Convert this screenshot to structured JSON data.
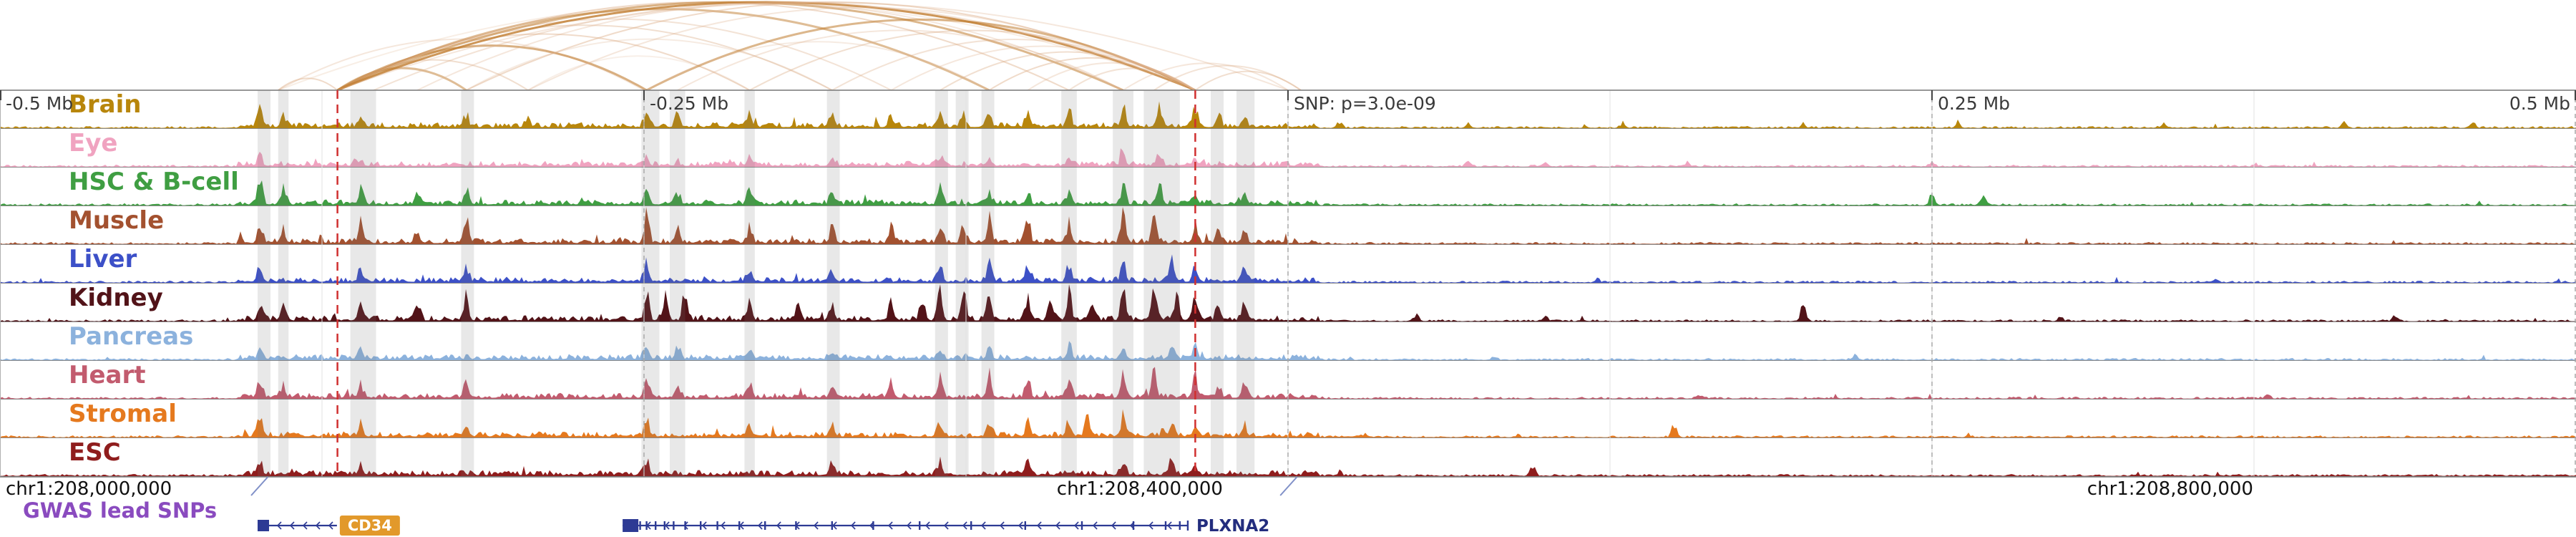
{
  "ruler": {
    "ticks": [
      {
        "label": "-0.5 Mb",
        "x": 0.0
      },
      {
        "label": "-0.25 Mb",
        "x": 0.25
      },
      {
        "label": "0.25 Mb",
        "x": 0.75
      },
      {
        "label": "0.5 Mb",
        "x": 1.0
      }
    ],
    "snp": {
      "label": "SNP: p=3.0e-09",
      "x": 0.5
    }
  },
  "genome_axis": {
    "coords": [
      {
        "label": "chr1:208,000,000",
        "x": 0.0
      },
      {
        "label": "chr1:208,400,000",
        "x": 0.408
      },
      {
        "label": "chr1:208,800,000",
        "x": 0.808
      }
    ]
  },
  "gwas_track": {
    "label": "GWAS lead SNPs",
    "color": "#8a4bbf"
  },
  "genes": [
    {
      "name": "CD34",
      "start": 0.1,
      "end": 0.1308,
      "label_style": "orange-box",
      "label_bg": "#e2992b",
      "label_text_color": "#ffffff"
    },
    {
      "name": "PLXNA2",
      "start": 0.2417,
      "end": 0.4611,
      "label_style": "text",
      "label_color": "#232d7e",
      "exons": [
        0.246,
        0.2485,
        0.251,
        0.2545,
        0.258,
        0.2615,
        0.266,
        0.272,
        0.2785,
        0.287,
        0.297,
        0.309,
        0.323,
        0.339,
        0.357,
        0.377,
        0.398,
        0.42,
        0.44,
        0.4525,
        0.458
      ]
    }
  ],
  "colors": {
    "arc": "#c07c2e",
    "arc_light": "#ddb08a",
    "highlight": "rgba(120,120,120,0.17)",
    "snp_line": "#d03030",
    "grid": "#e2e2e2",
    "grid_major": "#a8a8a8",
    "baseline": "#8a8a8a",
    "border": "#777777",
    "gene": "#2d3a94",
    "ruler_text": "#3a3a3a",
    "coord_text": "#111111",
    "connector": "#8090c8",
    "tick": "#444444"
  },
  "chart_data": {
    "type": "area",
    "title": "",
    "x_axis": {
      "relative_ticks": [
        "-0.5 Mb",
        "-0.25 Mb",
        "0.25 Mb",
        "0.5 Mb"
      ],
      "relative_tick_positions": [
        0.0,
        0.25,
        0.75,
        1.0
      ],
      "snp_annotation": "SNP: p=3.0e-09",
      "snp_position": 0.5,
      "genome_labels": [
        "chr1:208,000,000",
        "chr1:208,400,000",
        "chr1:208,800,000"
      ],
      "genome_label_positions": [
        0.0,
        0.408,
        0.808
      ],
      "range_mb": [
        -0.5,
        0.5
      ]
    },
    "snp_lines_x": [
      0.131,
      0.464
    ],
    "highlights": [
      [
        0.1,
        0.105
      ],
      [
        0.108,
        0.112
      ],
      [
        0.136,
        0.146
      ],
      [
        0.179,
        0.184
      ],
      [
        0.249,
        0.256
      ],
      [
        0.26,
        0.266
      ],
      [
        0.289,
        0.293
      ],
      [
        0.321,
        0.326
      ],
      [
        0.363,
        0.368
      ],
      [
        0.371,
        0.376
      ],
      [
        0.381,
        0.386
      ],
      [
        0.412,
        0.418
      ],
      [
        0.432,
        0.44
      ],
      [
        0.444,
        0.458
      ],
      [
        0.47,
        0.475
      ],
      [
        0.48,
        0.487
      ]
    ],
    "arcs": [
      [
        0.108,
        0.131,
        0.45
      ],
      [
        0.108,
        0.25,
        0.3
      ],
      [
        0.108,
        0.464,
        0.22
      ],
      [
        0.131,
        0.181,
        0.5
      ],
      [
        0.131,
        0.205,
        0.4
      ],
      [
        0.131,
        0.251,
        0.6
      ],
      [
        0.131,
        0.291,
        0.45
      ],
      [
        0.131,
        0.323,
        0.4
      ],
      [
        0.131,
        0.346,
        0.35
      ],
      [
        0.131,
        0.384,
        0.5
      ],
      [
        0.131,
        0.415,
        0.45
      ],
      [
        0.131,
        0.436,
        0.55
      ],
      [
        0.131,
        0.464,
        0.8
      ],
      [
        0.131,
        0.5,
        0.3
      ],
      [
        0.145,
        0.464,
        0.35
      ],
      [
        0.162,
        0.436,
        0.3
      ],
      [
        0.181,
        0.464,
        0.45
      ],
      [
        0.181,
        0.323,
        0.25
      ],
      [
        0.205,
        0.464,
        0.3
      ],
      [
        0.205,
        0.291,
        0.2
      ],
      [
        0.251,
        0.464,
        0.55
      ],
      [
        0.251,
        0.384,
        0.25
      ],
      [
        0.263,
        0.436,
        0.3
      ],
      [
        0.291,
        0.464,
        0.4
      ],
      [
        0.323,
        0.464,
        0.35
      ],
      [
        0.346,
        0.464,
        0.3
      ],
      [
        0.365,
        0.464,
        0.4
      ],
      [
        0.384,
        0.464,
        0.45
      ],
      [
        0.399,
        0.464,
        0.3
      ],
      [
        0.415,
        0.464,
        0.35
      ],
      [
        0.436,
        0.5,
        0.3
      ],
      [
        0.448,
        0.505,
        0.35
      ],
      [
        0.464,
        0.505,
        0.4
      ]
    ],
    "tracks": [
      {
        "name": "Brain",
        "color": "#b8860b",
        "peaks": [
          [
            0.101,
            0.45
          ],
          [
            0.11,
            0.3
          ],
          [
            0.14,
            0.35
          ],
          [
            0.181,
            0.3
          ],
          [
            0.205,
            0.25
          ],
          [
            0.251,
            0.5
          ],
          [
            0.263,
            0.35
          ],
          [
            0.291,
            0.3
          ],
          [
            0.323,
            0.35
          ],
          [
            0.346,
            0.3
          ],
          [
            0.365,
            0.4
          ],
          [
            0.374,
            0.35
          ],
          [
            0.384,
            0.45
          ],
          [
            0.399,
            0.4
          ],
          [
            0.415,
            0.5
          ],
          [
            0.436,
            0.55
          ],
          [
            0.45,
            0.6
          ],
          [
            0.464,
            0.45
          ],
          [
            0.473,
            0.35
          ],
          [
            0.483,
            0.3
          ],
          [
            0.52,
            0.12
          ],
          [
            0.57,
            0.1
          ],
          [
            0.63,
            0.12
          ],
          [
            0.7,
            0.1
          ],
          [
            0.76,
            0.15
          ],
          [
            0.84,
            0.1
          ],
          [
            0.91,
            0.12
          ],
          [
            0.96,
            0.1
          ]
        ]
      },
      {
        "name": "Eye",
        "color": "#f0a3c0",
        "peaks": [
          [
            0.101,
            0.2
          ],
          [
            0.14,
            0.15
          ],
          [
            0.251,
            0.25
          ],
          [
            0.291,
            0.3
          ],
          [
            0.323,
            0.2
          ],
          [
            0.365,
            0.25
          ],
          [
            0.384,
            0.2
          ],
          [
            0.415,
            0.25
          ],
          [
            0.436,
            0.3
          ],
          [
            0.45,
            0.25
          ],
          [
            0.464,
            0.2
          ],
          [
            0.57,
            0.18
          ],
          [
            0.6,
            0.15
          ],
          [
            0.655,
            0.12
          ],
          [
            0.75,
            0.1
          ]
        ]
      },
      {
        "name": "HSC & B-cell",
        "color": "#3f9e42",
        "peaks": [
          [
            0.101,
            0.6
          ],
          [
            0.11,
            0.4
          ],
          [
            0.14,
            0.35
          ],
          [
            0.162,
            0.3
          ],
          [
            0.181,
            0.4
          ],
          [
            0.251,
            0.5
          ],
          [
            0.263,
            0.3
          ],
          [
            0.291,
            0.35
          ],
          [
            0.323,
            0.3
          ],
          [
            0.365,
            0.4
          ],
          [
            0.384,
            0.35
          ],
          [
            0.399,
            0.3
          ],
          [
            0.415,
            0.35
          ],
          [
            0.436,
            0.45
          ],
          [
            0.45,
            0.5
          ],
          [
            0.464,
            0.35
          ],
          [
            0.483,
            0.3
          ],
          [
            0.75,
            0.3
          ],
          [
            0.77,
            0.2
          ]
        ]
      },
      {
        "name": "Muscle",
        "color": "#a3512f",
        "peaks": [
          [
            0.101,
            0.5
          ],
          [
            0.11,
            0.35
          ],
          [
            0.14,
            0.5
          ],
          [
            0.162,
            0.35
          ],
          [
            0.181,
            0.65
          ],
          [
            0.251,
            0.75
          ],
          [
            0.263,
            0.4
          ],
          [
            0.291,
            0.4
          ],
          [
            0.323,
            0.35
          ],
          [
            0.346,
            0.4
          ],
          [
            0.365,
            0.5
          ],
          [
            0.374,
            0.45
          ],
          [
            0.384,
            0.6
          ],
          [
            0.399,
            0.65
          ],
          [
            0.415,
            0.5
          ],
          [
            0.436,
            0.75
          ],
          [
            0.448,
            0.85
          ],
          [
            0.464,
            0.55
          ],
          [
            0.473,
            0.4
          ],
          [
            0.483,
            0.35
          ]
        ]
      },
      {
        "name": "Liver",
        "color": "#3c50c8",
        "peaks": [
          [
            0.101,
            0.4
          ],
          [
            0.14,
            0.3
          ],
          [
            0.181,
            0.35
          ],
          [
            0.251,
            0.6
          ],
          [
            0.291,
            0.3
          ],
          [
            0.323,
            0.3
          ],
          [
            0.365,
            0.4
          ],
          [
            0.384,
            0.5
          ],
          [
            0.399,
            0.4
          ],
          [
            0.415,
            0.4
          ],
          [
            0.436,
            0.5
          ],
          [
            0.455,
            0.7
          ],
          [
            0.464,
            0.5
          ],
          [
            0.483,
            0.3
          ],
          [
            0.62,
            0.1
          ],
          [
            0.86,
            0.12
          ]
        ]
      },
      {
        "name": "Kidney",
        "color": "#521318",
        "peaks": [
          [
            0.101,
            0.5
          ],
          [
            0.11,
            0.45
          ],
          [
            0.14,
            0.55
          ],
          [
            0.162,
            0.45
          ],
          [
            0.181,
            0.6
          ],
          [
            0.251,
            0.85
          ],
          [
            0.258,
            0.6
          ],
          [
            0.266,
            0.55
          ],
          [
            0.291,
            0.5
          ],
          [
            0.31,
            0.45
          ],
          [
            0.323,
            0.5
          ],
          [
            0.346,
            0.55
          ],
          [
            0.358,
            0.6
          ],
          [
            0.365,
            0.75
          ],
          [
            0.374,
            0.85
          ],
          [
            0.384,
            0.75
          ],
          [
            0.399,
            0.65
          ],
          [
            0.408,
            0.6
          ],
          [
            0.415,
            0.75
          ],
          [
            0.424,
            0.6
          ],
          [
            0.436,
            0.85
          ],
          [
            0.448,
            0.75
          ],
          [
            0.457,
            0.6
          ],
          [
            0.464,
            0.65
          ],
          [
            0.473,
            0.5
          ],
          [
            0.483,
            0.45
          ],
          [
            0.7,
            0.55
          ],
          [
            0.55,
            0.15
          ],
          [
            0.6,
            0.12
          ],
          [
            0.8,
            0.1
          ],
          [
            0.93,
            0.15
          ]
        ]
      },
      {
        "name": "Pancreas",
        "color": "#8cb2dd",
        "peaks": [
          [
            0.101,
            0.3
          ],
          [
            0.14,
            0.2
          ],
          [
            0.251,
            0.4
          ],
          [
            0.263,
            0.35
          ],
          [
            0.291,
            0.25
          ],
          [
            0.323,
            0.2
          ],
          [
            0.365,
            0.3
          ],
          [
            0.384,
            0.3
          ],
          [
            0.415,
            0.35
          ],
          [
            0.436,
            0.4
          ],
          [
            0.455,
            0.45
          ],
          [
            0.464,
            0.3
          ],
          [
            0.58,
            0.1
          ],
          [
            0.72,
            0.1
          ]
        ]
      },
      {
        "name": "Heart",
        "color": "#c25b6e",
        "peaks": [
          [
            0.101,
            0.5
          ],
          [
            0.11,
            0.3
          ],
          [
            0.14,
            0.35
          ],
          [
            0.181,
            0.5
          ],
          [
            0.251,
            0.5
          ],
          [
            0.263,
            0.35
          ],
          [
            0.291,
            0.35
          ],
          [
            0.323,
            0.3
          ],
          [
            0.346,
            0.35
          ],
          [
            0.365,
            0.5
          ],
          [
            0.384,
            0.65
          ],
          [
            0.399,
            0.55
          ],
          [
            0.415,
            0.5
          ],
          [
            0.436,
            0.75
          ],
          [
            0.448,
            0.65
          ],
          [
            0.464,
            0.5
          ],
          [
            0.473,
            0.35
          ],
          [
            0.483,
            0.3
          ],
          [
            0.66,
            0.1
          ],
          [
            0.88,
            0.1
          ]
        ]
      },
      {
        "name": "Stromal",
        "color": "#e5791e",
        "peaks": [
          [
            0.101,
            0.5
          ],
          [
            0.14,
            0.3
          ],
          [
            0.181,
            0.3
          ],
          [
            0.251,
            0.5
          ],
          [
            0.291,
            0.3
          ],
          [
            0.323,
            0.3
          ],
          [
            0.365,
            0.35
          ],
          [
            0.384,
            0.4
          ],
          [
            0.399,
            0.35
          ],
          [
            0.415,
            0.45
          ],
          [
            0.422,
            0.6
          ],
          [
            0.436,
            0.5
          ],
          [
            0.455,
            0.4
          ],
          [
            0.464,
            0.35
          ],
          [
            0.483,
            0.3
          ],
          [
            0.65,
            0.35
          ],
          [
            0.53,
            0.1
          ]
        ]
      },
      {
        "name": "ESC",
        "color": "#8f1d1d",
        "peaks": [
          [
            0.101,
            0.3
          ],
          [
            0.14,
            0.2
          ],
          [
            0.251,
            0.35
          ],
          [
            0.323,
            0.4
          ],
          [
            0.365,
            0.3
          ],
          [
            0.399,
            0.3
          ],
          [
            0.436,
            0.35
          ],
          [
            0.455,
            0.4
          ],
          [
            0.464,
            0.3
          ],
          [
            0.595,
            0.25
          ],
          [
            0.52,
            0.1
          ]
        ]
      }
    ]
  }
}
